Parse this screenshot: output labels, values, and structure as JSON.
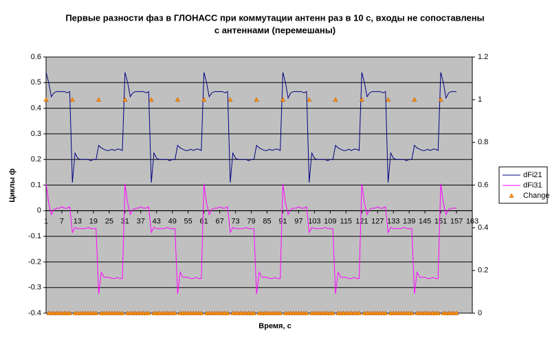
{
  "chart_data": {
    "type": "line",
    "title": [
      "Первые разности фаз в ГЛОНАСС при коммутации антенн раз в 10 с, входы не сопоставлены",
      "с антеннами (перемешаны)"
    ],
    "xlabel": "Время, с",
    "ylabel": "Циклы ф",
    "x": [
      1,
      2,
      3,
      4,
      5,
      6,
      7,
      8,
      9,
      10,
      11,
      12,
      13,
      14,
      15,
      16,
      17,
      18,
      19,
      20,
      21,
      22,
      23,
      24,
      25,
      26,
      27,
      28,
      29,
      30,
      31,
      32,
      33,
      34,
      35,
      36,
      37,
      38,
      39,
      40,
      41,
      42,
      43,
      44,
      45,
      46,
      47,
      48,
      49,
      50,
      51,
      52,
      53,
      54,
      55,
      56,
      57,
      58,
      59,
      60,
      61,
      62,
      63,
      64,
      65,
      66,
      67,
      68,
      69,
      70,
      71,
      72,
      73,
      74,
      75,
      76,
      77,
      78,
      79,
      80,
      81,
      82,
      83,
      84,
      85,
      86,
      87,
      88,
      89,
      90,
      91,
      92,
      93,
      94,
      95,
      96,
      97,
      98,
      99,
      100,
      101,
      102,
      103,
      104,
      105,
      106,
      107,
      108,
      109,
      110,
      111,
      112,
      113,
      114,
      115,
      116,
      117,
      118,
      119,
      120,
      121,
      122,
      123,
      124,
      125,
      126,
      127,
      128,
      129,
      130,
      131,
      132,
      133,
      134,
      135,
      136,
      137,
      138,
      139,
      140,
      141,
      142,
      143,
      144,
      145,
      146,
      147,
      148,
      149,
      150,
      151,
      152,
      153,
      154,
      155,
      156,
      157
    ],
    "xlim": [
      1,
      163
    ],
    "xticks": [
      1,
      7,
      13,
      19,
      25,
      31,
      37,
      43,
      49,
      55,
      61,
      67,
      73,
      79,
      85,
      91,
      97,
      103,
      109,
      115,
      121,
      127,
      133,
      139,
      145,
      151,
      157,
      163
    ],
    "ylim": [
      -0.4,
      0.6
    ],
    "yticks": [
      -0.4,
      -0.3,
      -0.2,
      -0.1,
      0,
      0.1,
      0.2,
      0.3,
      0.4,
      0.5,
      0.6
    ],
    "y2lim": [
      0,
      1.2
    ],
    "y2ticks": [
      0,
      0.2,
      0.4,
      0.6,
      0.8,
      1,
      1.2
    ],
    "grid": true,
    "legend": "right",
    "series": [
      {
        "name": "dFi21",
        "color": "#000080",
        "values": [
          0.54,
          0.5,
          0.445,
          0.46,
          0.465,
          0.465,
          0.465,
          0.465,
          0.46,
          0.465,
          0.11,
          0.225,
          0.205,
          0.2,
          0.2,
          0.2,
          0.2,
          0.195,
          0.2,
          0.2,
          0.255,
          0.245,
          0.24,
          0.235,
          0.235,
          0.24,
          0.235,
          0.24,
          0.24,
          0.235,
          0.54,
          0.5,
          0.445,
          0.46,
          0.465,
          0.465,
          0.465,
          0.465,
          0.46,
          0.465,
          0.11,
          0.225,
          0.205,
          0.2,
          0.2,
          0.2,
          0.2,
          0.195,
          0.2,
          0.2,
          0.255,
          0.245,
          0.24,
          0.235,
          0.235,
          0.24,
          0.235,
          0.24,
          0.24,
          0.235,
          0.54,
          0.5,
          0.445,
          0.46,
          0.465,
          0.465,
          0.465,
          0.465,
          0.46,
          0.465,
          0.11,
          0.225,
          0.205,
          0.2,
          0.2,
          0.2,
          0.2,
          0.195,
          0.2,
          0.2,
          0.255,
          0.245,
          0.24,
          0.235,
          0.235,
          0.24,
          0.235,
          0.24,
          0.24,
          0.235,
          0.54,
          0.5,
          0.44,
          0.46,
          0.465,
          0.465,
          0.465,
          0.465,
          0.46,
          0.465,
          0.11,
          0.225,
          0.205,
          0.2,
          0.2,
          0.2,
          0.2,
          0.195,
          0.2,
          0.2,
          0.255,
          0.245,
          0.24,
          0.235,
          0.235,
          0.24,
          0.235,
          0.24,
          0.24,
          0.235,
          0.54,
          0.5,
          0.445,
          0.46,
          0.465,
          0.465,
          0.465,
          0.465,
          0.46,
          0.465,
          0.11,
          0.225,
          0.205,
          0.2,
          0.2,
          0.2,
          0.2,
          0.195,
          0.2,
          0.2,
          0.255,
          0.245,
          0.24,
          0.235,
          0.235,
          0.24,
          0.235,
          0.24,
          0.24,
          0.235,
          0.54,
          0.5,
          0.44,
          0.46,
          0.465,
          0.465,
          0.465
        ]
      },
      {
        "name": "dFi31",
        "color": "#ff00ff",
        "values": [
          0.105,
          0.03,
          -0.015,
          0.005,
          0.01,
          0.01,
          0.015,
          0.01,
          0.01,
          0.015,
          -0.085,
          -0.065,
          -0.07,
          -0.07,
          -0.07,
          -0.07,
          -0.065,
          -0.07,
          -0.07,
          -0.07,
          -0.325,
          -0.24,
          -0.26,
          -0.26,
          -0.26,
          -0.265,
          -0.265,
          -0.26,
          -0.265,
          -0.265,
          0.105,
          0.03,
          -0.015,
          0.005,
          0.01,
          0.01,
          0.015,
          0.01,
          0.01,
          0.015,
          -0.085,
          -0.065,
          -0.07,
          -0.07,
          -0.07,
          -0.07,
          -0.065,
          -0.07,
          -0.07,
          -0.07,
          -0.325,
          -0.24,
          -0.26,
          -0.26,
          -0.26,
          -0.265,
          -0.265,
          -0.26,
          -0.265,
          -0.265,
          0.105,
          0.03,
          -0.015,
          0.005,
          0.01,
          0.01,
          0.015,
          0.01,
          0.01,
          0.015,
          -0.085,
          -0.065,
          -0.07,
          -0.07,
          -0.07,
          -0.07,
          -0.065,
          -0.07,
          -0.07,
          -0.07,
          -0.325,
          -0.24,
          -0.26,
          -0.26,
          -0.26,
          -0.265,
          -0.265,
          -0.26,
          -0.265,
          -0.265,
          0.105,
          0.03,
          -0.015,
          0.005,
          0.01,
          0.01,
          0.015,
          0.01,
          0.01,
          0.015,
          -0.085,
          -0.065,
          -0.07,
          -0.07,
          -0.07,
          -0.07,
          -0.065,
          -0.07,
          -0.07,
          -0.07,
          -0.325,
          -0.24,
          -0.26,
          -0.26,
          -0.26,
          -0.265,
          -0.265,
          -0.26,
          -0.265,
          -0.265,
          0.105,
          0.03,
          -0.015,
          0.005,
          0.01,
          0.01,
          0.015,
          0.01,
          0.01,
          0.015,
          -0.085,
          -0.065,
          -0.07,
          -0.07,
          -0.07,
          -0.07,
          -0.065,
          -0.07,
          -0.07,
          -0.07,
          -0.325,
          -0.24,
          -0.26,
          -0.26,
          -0.26,
          -0.265,
          -0.265,
          -0.26,
          -0.265,
          -0.265,
          0.105,
          0.03,
          -0.015,
          0.005,
          0.01,
          0.01,
          0.01
        ]
      },
      {
        "name": "Change",
        "color": "#ff9900",
        "axis": "y2",
        "marker": "triangle",
        "values": [
          1,
          0,
          0,
          0,
          0,
          0,
          0,
          0,
          0,
          0,
          1,
          0,
          0,
          0,
          0,
          0,
          0,
          0,
          0,
          0,
          1,
          0,
          0,
          0,
          0,
          0,
          0,
          0,
          0,
          0,
          1,
          0,
          0,
          0,
          0,
          0,
          0,
          0,
          0,
          0,
          1,
          0,
          0,
          0,
          0,
          0,
          0,
          0,
          0,
          0,
          1,
          0,
          0,
          0,
          0,
          0,
          0,
          0,
          0,
          0,
          1,
          0,
          0,
          0,
          0,
          0,
          0,
          0,
          0,
          0,
          1,
          0,
          0,
          0,
          0,
          0,
          0,
          0,
          0,
          0,
          1,
          0,
          0,
          0,
          0,
          0,
          0,
          0,
          0,
          0,
          1,
          0,
          0,
          0,
          0,
          0,
          0,
          0,
          0,
          0,
          1,
          0,
          0,
          0,
          0,
          0,
          0,
          0,
          0,
          0,
          1,
          0,
          0,
          0,
          0,
          0,
          0,
          0,
          0,
          0,
          1,
          0,
          0,
          0,
          0,
          0,
          0,
          0,
          0,
          0,
          1,
          0,
          0,
          0,
          0,
          0,
          0,
          0,
          0,
          0,
          1,
          0,
          0,
          0,
          0,
          0,
          0,
          0,
          0,
          0,
          1,
          0,
          0,
          0,
          0,
          0,
          0
        ]
      }
    ]
  }
}
